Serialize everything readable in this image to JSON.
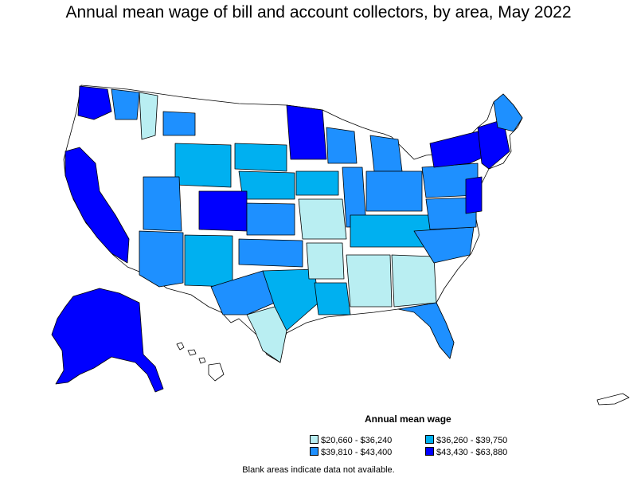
{
  "title": "Annual mean wage of bill and account collectors, by area, May 2022",
  "legend": {
    "title": "Annual mean wage",
    "items": [
      {
        "label": "$20,660 - $36,240",
        "color": "#b9eef2"
      },
      {
        "label": "$36,260 - $39,750",
        "color": "#00b0f0"
      },
      {
        "label": "$39,810 - $43,400",
        "color": "#1e90ff"
      },
      {
        "label": "$43,430 - $63,880",
        "color": "#0000ff"
      }
    ]
  },
  "note": "Blank areas indicate data not available.",
  "colors": {
    "no_data": "#ffffff",
    "boundary": "#000000"
  }
}
